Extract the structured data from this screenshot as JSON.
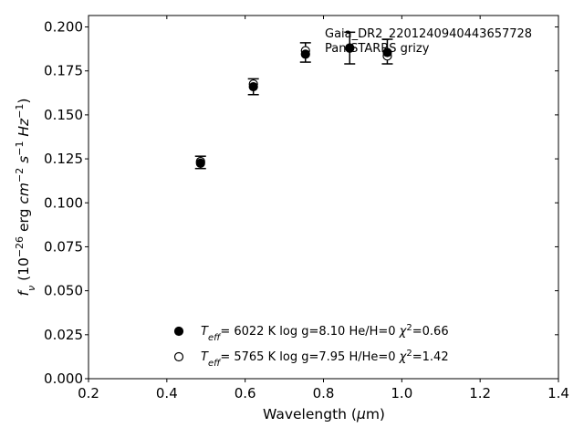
{
  "chart_data": {
    "type": "scatter",
    "xlabel": "Wavelength (µm)",
    "ylabel": "f_ν (10^-26 erg cm^-2 s^-1 Hz^-1)",
    "xlim": [
      0.2,
      1.4
    ],
    "ylim": [
      0.0,
      0.2065
    ],
    "xticks": [
      "0.2",
      "0.4",
      "0.6",
      "0.8",
      "1.0",
      "1.2",
      "1.4"
    ],
    "yticks": [
      "0.000",
      "0.025",
      "0.050",
      "0.075",
      "0.100",
      "0.125",
      "0.150",
      "0.175",
      "0.200"
    ],
    "annotation": [
      "Gaia_DR2_2201240940443657728",
      "Pan-STARRS grizy"
    ],
    "observed": {
      "x": [
        0.486,
        0.621,
        0.754,
        0.867,
        0.963
      ],
      "y": [
        0.123,
        0.166,
        0.1855,
        0.188,
        0.186
      ],
      "yerr": [
        0.0035,
        0.0045,
        0.0055,
        0.009,
        0.007
      ]
    },
    "series": [
      {
        "marker": "filled",
        "x": [
          0.486,
          0.621,
          0.754,
          0.867,
          0.963
        ],
        "y": [
          0.1225,
          0.166,
          0.1845,
          0.188,
          0.1855
        ],
        "legend": {
          "teff": "6022 K",
          "logg": "log g=8.10",
          "comp": "He/H=0",
          "chi2": "=0.66"
        }
      },
      {
        "marker": "open",
        "x": [
          0.486,
          0.621,
          0.754,
          0.867,
          0.963
        ],
        "y": [
          0.1235,
          0.1675,
          0.1865,
          0.188,
          0.1835
        ],
        "legend": {
          "teff": "5765 K",
          "logg": "log g=7.95",
          "comp": "H/He=0",
          "chi2": "=1.42"
        }
      }
    ],
    "grid": false,
    "legend_position": "lower-center"
  }
}
